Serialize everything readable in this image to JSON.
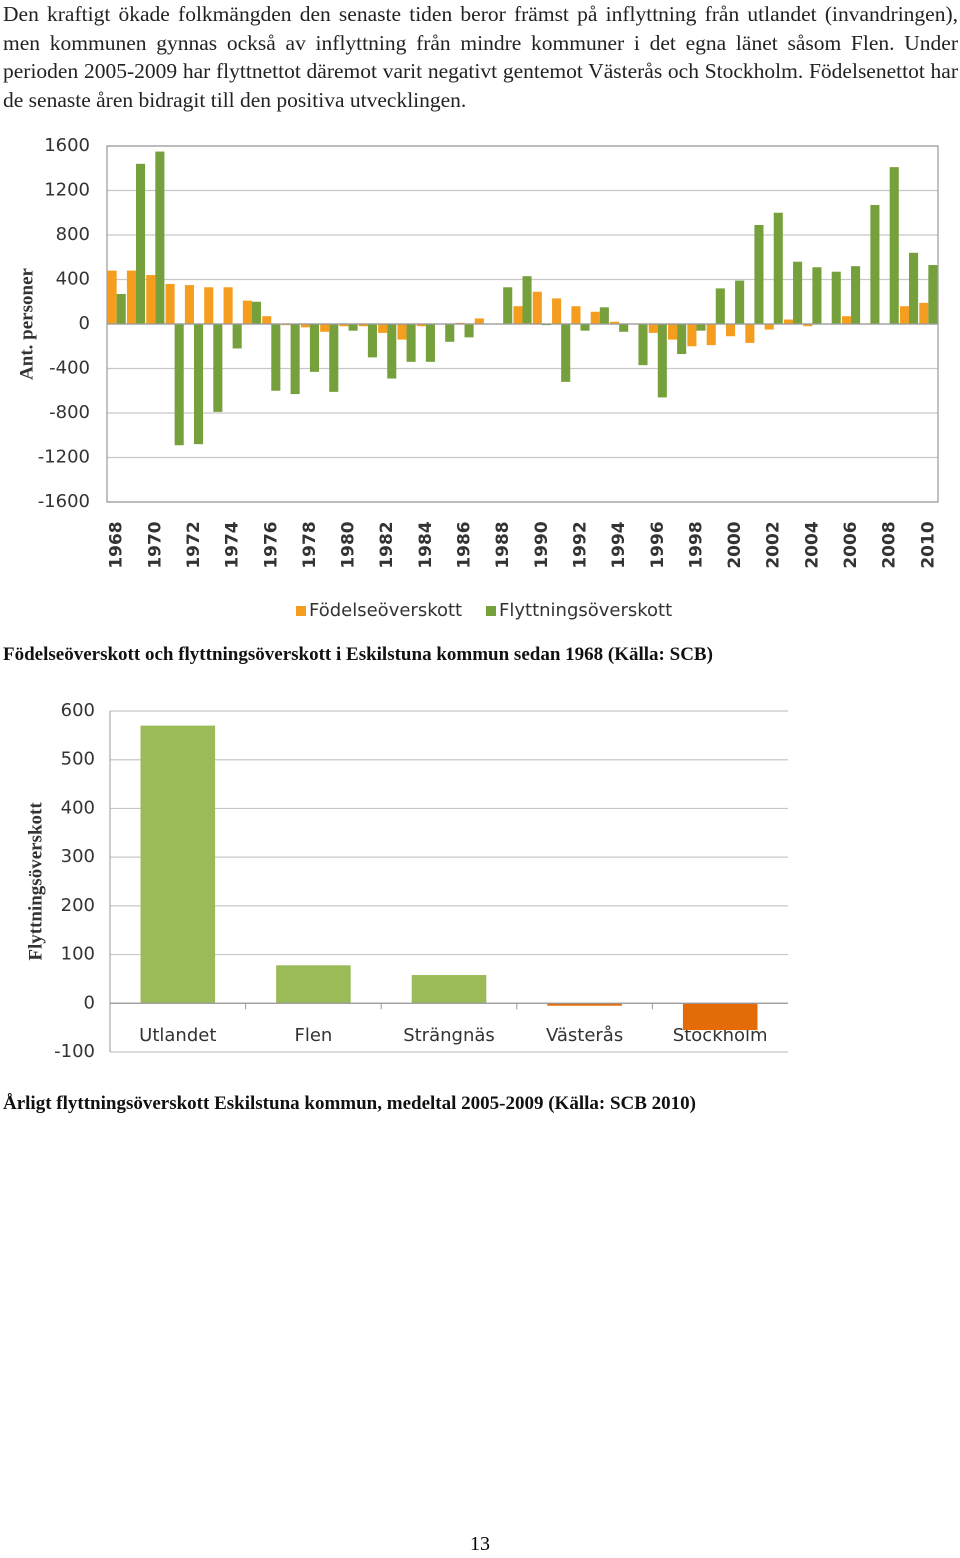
{
  "paragraph": "Den kraftigt ökade folkmängden den senaste tiden beror främst på inflyttning från utlandet (invandringen), men kommunen gynnas också av inflyttning från mindre kommuner i det egna länet såsom Flen. Under perioden 2005-2009 har flyttnettot däremot varit negativt gentemot Västerås och Stockholm. Födelsenettot har de senaste åren bidragit till den positiva utvecklingen.",
  "chart_data": [
    {
      "type": "bar",
      "ylabel": "Ant. personer",
      "categories": [
        "1968",
        "1969",
        "1970",
        "1971",
        "1972",
        "1973",
        "1974",
        "1975",
        "1976",
        "1977",
        "1978",
        "1979",
        "1980",
        "1981",
        "1982",
        "1983",
        "1984",
        "1985",
        "1986",
        "1987",
        "1988",
        "1989",
        "1990",
        "1991",
        "1992",
        "1993",
        "1994",
        "1995",
        "1996",
        "1997",
        "1998",
        "1999",
        "2000",
        "2001",
        "2002",
        "2003",
        "2004",
        "2005",
        "2006",
        "2007",
        "2008",
        "2009",
        "2010"
      ],
      "category_labels_every": 2,
      "series": [
        {
          "name": "Födelseöverskott",
          "color": "#f59d1e",
          "values": [
            480,
            480,
            440,
            360,
            350,
            330,
            330,
            210,
            70,
            -10,
            -30,
            -70,
            -20,
            -20,
            -80,
            -140,
            -20,
            0,
            10,
            50,
            0,
            160,
            290,
            230,
            160,
            110,
            20,
            0,
            -80,
            -140,
            -200,
            -190,
            -110,
            -170,
            -50,
            40,
            -20,
            0,
            70,
            0,
            0,
            160,
            190
          ]
        },
        {
          "name": "Flyttningsöverskott",
          "color": "#76a03c",
          "values": [
            270,
            1440,
            1550,
            -1090,
            -1080,
            -790,
            -220,
            200,
            -600,
            -630,
            -430,
            -610,
            -60,
            -300,
            -490,
            -340,
            -340,
            -160,
            -120,
            0,
            330,
            430,
            -10,
            -520,
            -60,
            150,
            -70,
            -370,
            -660,
            -270,
            -60,
            320,
            390,
            890,
            1000,
            560,
            510,
            470,
            520,
            1070,
            1410,
            640,
            530
          ]
        }
      ],
      "ylim": [
        -1600,
        1600
      ],
      "yticks": [
        -1600,
        -1200,
        -800,
        -400,
        0,
        400,
        800,
        1200,
        1600
      ],
      "grid": true,
      "legend": "bottom"
    },
    {
      "type": "bar",
      "ylabel": "Flyttningsöverskott",
      "categories": [
        "Utlandet",
        "Flen",
        "Strängnäs",
        "Västerås",
        "Stockholm"
      ],
      "values": [
        570,
        78,
        58,
        -5,
        -55
      ],
      "colors": [
        "#9bbb59",
        "#9bbb59",
        "#9bbb59",
        "#e36c09",
        "#e36c09"
      ],
      "ylim": [
        -100,
        600
      ],
      "yticks": [
        -100,
        0,
        100,
        200,
        300,
        400,
        500,
        600
      ],
      "grid": true
    }
  ],
  "captions": [
    "Födelseöverskott och flyttningsöverskott i Eskilstuna kommun sedan 1968 (Källa: SCB)",
    "Årligt flyttningsöverskott Eskilstuna kommun, medeltal 2005-2009 (Källa: SCB 2010)"
  ],
  "page_number": "13"
}
